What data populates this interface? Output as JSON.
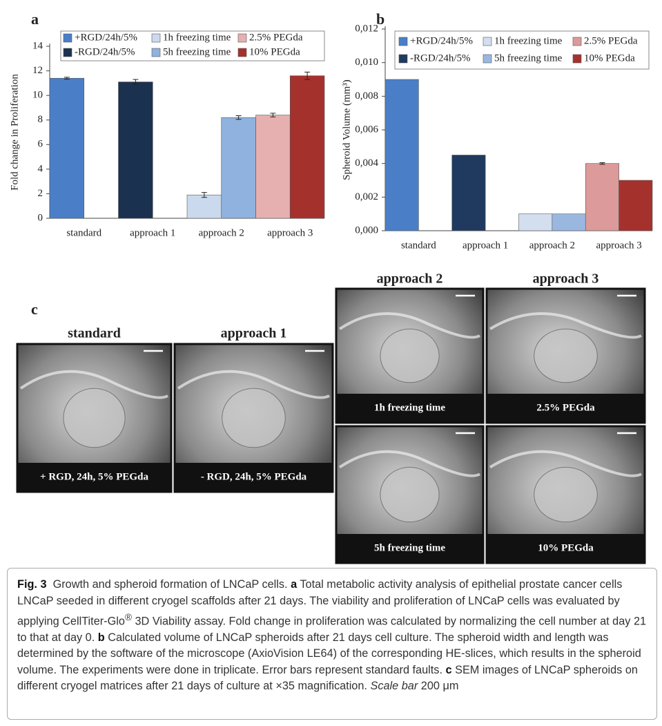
{
  "chart_data": [
    {
      "type": "bar",
      "panel": "a",
      "ylabel": "Fold change in Proliferation",
      "categories": [
        "standard",
        "approach 1",
        "approach 2",
        "approach 3"
      ],
      "ylim": [
        0,
        14
      ],
      "yticks": [
        0,
        2,
        4,
        6,
        8,
        10,
        12,
        14
      ],
      "legend": "top",
      "series": [
        {
          "name": "+RGD/24h/5%",
          "color": "#4a7fc8",
          "values": [
            11.4,
            null,
            null,
            null
          ],
          "errors": [
            0.08,
            null,
            null,
            null
          ]
        },
        {
          "name": "-RGD/24h/5%",
          "color": "#1b3150",
          "values": [
            null,
            11.1,
            null,
            null
          ],
          "errors": [
            null,
            0.2,
            null,
            null
          ]
        },
        {
          "name": "1h freezing time",
          "color": "#cbd9ee",
          "values": [
            null,
            null,
            1.9,
            null
          ],
          "errors": [
            null,
            null,
            0.2,
            null
          ]
        },
        {
          "name": "5h freezing time",
          "color": "#8fb2de",
          "values": [
            null,
            null,
            8.2,
            null
          ],
          "errors": [
            null,
            null,
            0.15,
            null
          ]
        },
        {
          "name": "2.5% PEGda",
          "color": "#e6b0b0",
          "values": [
            null,
            null,
            null,
            8.4
          ],
          "errors": [
            null,
            null,
            null,
            0.15
          ]
        },
        {
          "name": "10%  PEGda",
          "color": "#a5312d",
          "values": [
            null,
            null,
            null,
            11.6
          ],
          "errors": [
            null,
            null,
            null,
            0.3
          ]
        }
      ]
    },
    {
      "type": "bar",
      "panel": "b",
      "ylabel": "Spheroid  Volume (mm³)",
      "categories": [
        "standard",
        "approach 1",
        "approach 2",
        "approach 3"
      ],
      "ylim": [
        0,
        0.012
      ],
      "yticks": [
        {
          "value": 0,
          "label": "0,000"
        },
        {
          "value": 0.002,
          "label": "0,002"
        },
        {
          "value": 0.004,
          "label": "0,004"
        },
        {
          "value": 0.006,
          "label": "0,006"
        },
        {
          "value": 0.008,
          "label": "0,008"
        },
        {
          "value": 0.01,
          "label": "0,010"
        },
        {
          "value": 0.012,
          "label": "0,012"
        }
      ],
      "legend": "top",
      "series": [
        {
          "name": "+RGD/24h/5%",
          "color": "#4a7fc8",
          "values": [
            0.009,
            null,
            null,
            null
          ]
        },
        {
          "name": "-RGD/24h/5%",
          "color": "#1f3a5e",
          "values": [
            null,
            0.0045,
            null,
            null
          ]
        },
        {
          "name": "1h freezing time",
          "color": "#d3deef",
          "values": [
            null,
            null,
            0.001,
            null
          ]
        },
        {
          "name": "5h freezing time",
          "color": "#9ab8df",
          "values": [
            null,
            null,
            0.001,
            null
          ]
        },
        {
          "name": "2.5% PEGda",
          "color": "#dc9a9a",
          "values": [
            null,
            null,
            null,
            0.004
          ],
          "errors": [
            null,
            null,
            null,
            5e-05
          ]
        },
        {
          "name": "10% PEGda",
          "color": "#a5312d",
          "values": [
            null,
            null,
            null,
            0.003
          ]
        }
      ]
    }
  ],
  "images": {
    "panel": "c",
    "columns": [
      {
        "header": "standard",
        "panels": [
          {
            "caption": "+ RGD, 24h, 5% PEGda"
          }
        ]
      },
      {
        "header": "approach 1",
        "panels": [
          {
            "caption": "- RGD, 24h, 5% PEGda"
          }
        ]
      },
      {
        "header": "approach 2",
        "panels": [
          {
            "caption": "1h freezing time"
          },
          {
            "caption": "5h freezing time"
          }
        ]
      },
      {
        "header": "approach 3",
        "panels": [
          {
            "caption": "2.5% PEGda"
          },
          {
            "caption": "10% PEGda"
          }
        ]
      }
    ]
  },
  "caption": {
    "label": "Fig. 3",
    "parts": [
      "Growth and spheroid formation of LNCaP cells. ",
      "a",
      " Total metabolic activity analysis of epithelial prostate cancer cells LNCaP seeded in different cryogel scaffolds after 21 days. The viability and proliferation of LNCaP cells was evaluated by applying CellTiter-Glo",
      "®",
      " 3D Viability assay. Fold change in proliferation was calculated by normalizing the cell number at day 21 to that at day 0. ",
      "b",
      " Calculated volume of LNCaP spheroids after 21 days cell culture. The spheroid width and length was determined by the software of the microscope (AxioVision LE64) of the corresponding HE-slices, which results in the spheroid volume. The experiments were done in triplicate. Error bars represent standard faults. ",
      "c",
      " SEM images of LNCaP spheroids on different cryogel matrices after 21 days of culture at ×35 magnification. ",
      "Scale bar",
      " 200 μm"
    ]
  }
}
